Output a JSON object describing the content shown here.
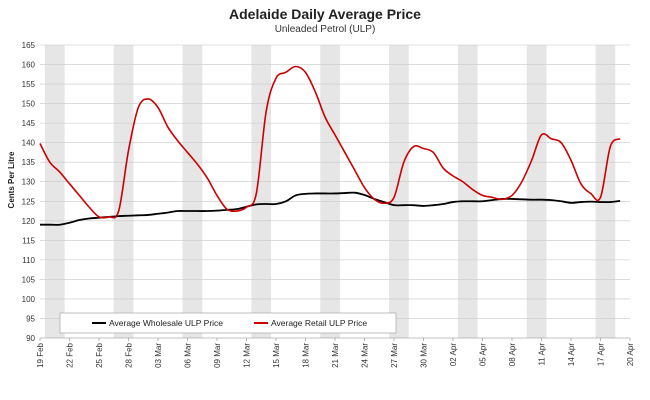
{
  "chart_data": {
    "type": "line",
    "title": "Adelaide Daily Average Price",
    "subtitle": "Unleaded Petrol (ULP)",
    "ylabel": "Cents Per Litre",
    "ylim": [
      90,
      165
    ],
    "yticks": [
      90,
      95,
      100,
      105,
      110,
      115,
      120,
      125,
      130,
      135,
      140,
      145,
      150,
      155,
      160,
      165
    ],
    "grid": true,
    "legend_position": "bottom-left",
    "x_start_date": "2023-02-19",
    "x_tick_labels": [
      "19 Feb",
      "22 Feb",
      "25 Feb",
      "28 Feb",
      "03 Mar",
      "06 Mar",
      "09 Mar",
      "12 Mar",
      "15 Mar",
      "18 Mar",
      "21 Mar",
      "24 Mar",
      "27 Mar",
      "30 Mar",
      "02 Apr",
      "05 Apr",
      "08 Apr",
      "11 Apr",
      "14 Apr",
      "17 Apr",
      "20 Apr"
    ],
    "shaded_days": [
      1,
      8,
      15,
      22,
      29,
      36,
      43,
      50,
      57
    ],
    "series": [
      {
        "name": "Average Wholesale ULP Price",
        "color": "#000000",
        "x": [
          "19 Feb",
          "20 Feb",
          "21 Feb",
          "22 Feb",
          "23 Feb",
          "24 Feb",
          "25 Feb",
          "26 Feb",
          "27 Feb",
          "28 Feb",
          "01 Mar",
          "02 Mar",
          "03 Mar",
          "04 Mar",
          "05 Mar",
          "06 Mar",
          "07 Mar",
          "08 Mar",
          "09 Mar",
          "10 Mar",
          "11 Mar",
          "12 Mar",
          "13 Mar",
          "14 Mar",
          "15 Mar",
          "16 Mar",
          "17 Mar",
          "18 Mar",
          "19 Mar",
          "20 Mar",
          "21 Mar",
          "22 Mar",
          "23 Mar",
          "24 Mar",
          "25 Mar",
          "26 Mar",
          "27 Mar",
          "28 Mar",
          "29 Mar",
          "30 Mar",
          "31 Mar",
          "01 Apr",
          "02 Apr",
          "03 Apr",
          "04 Apr",
          "05 Apr",
          "06 Apr",
          "07 Apr",
          "08 Apr",
          "09 Apr",
          "10 Apr",
          "11 Apr",
          "12 Apr",
          "13 Apr",
          "14 Apr",
          "15 Apr",
          "16 Apr",
          "17 Apr",
          "18 Apr",
          "19 Apr"
        ],
        "values": [
          119.0,
          119.0,
          119.0,
          119.5,
          120.2,
          120.6,
          120.8,
          121.0,
          121.2,
          121.3,
          121.4,
          121.5,
          121.8,
          122.1,
          122.5,
          122.5,
          122.5,
          122.5,
          122.6,
          122.8,
          123.0,
          123.6,
          124.2,
          124.3,
          124.3,
          125.0,
          126.5,
          126.9,
          127.0,
          127.0,
          127.0,
          127.1,
          127.2,
          126.6,
          125.6,
          124.8,
          124.0,
          124.0,
          124.0,
          123.8,
          124.0,
          124.3,
          124.8,
          125.0,
          125.0,
          125.0,
          125.3,
          125.6,
          125.6,
          125.5,
          125.4,
          125.4,
          125.3,
          125.0,
          124.6,
          124.8,
          124.9,
          124.8,
          124.8,
          125.1
        ]
      },
      {
        "name": "Average Retail ULP Price",
        "color": "#cc0000",
        "x": [
          "19 Feb",
          "20 Feb",
          "21 Feb",
          "22 Feb",
          "23 Feb",
          "24 Feb",
          "25 Feb",
          "26 Feb",
          "27 Feb",
          "28 Feb",
          "01 Mar",
          "02 Mar",
          "03 Mar",
          "04 Mar",
          "05 Mar",
          "06 Mar",
          "07 Mar",
          "08 Mar",
          "09 Mar",
          "10 Mar",
          "11 Mar",
          "12 Mar",
          "13 Mar",
          "14 Mar",
          "15 Mar",
          "16 Mar",
          "17 Mar",
          "18 Mar",
          "19 Mar",
          "20 Mar",
          "21 Mar",
          "22 Mar",
          "23 Mar",
          "24 Mar",
          "25 Mar",
          "26 Mar",
          "27 Mar",
          "28 Mar",
          "29 Mar",
          "30 Mar",
          "31 Mar",
          "01 Apr",
          "02 Apr",
          "03 Apr",
          "04 Apr",
          "05 Apr",
          "06 Apr",
          "07 Apr",
          "08 Apr",
          "09 Apr",
          "10 Apr",
          "11 Apr",
          "12 Apr",
          "13 Apr",
          "14 Apr",
          "15 Apr",
          "16 Apr",
          "17 Apr",
          "18 Apr",
          "19 Apr"
        ],
        "values": [
          139.8,
          135.0,
          132.5,
          129.5,
          126.5,
          123.5,
          121.0,
          121.0,
          122.5,
          138.0,
          149.0,
          151.2,
          149.0,
          144.0,
          140.5,
          137.5,
          134.5,
          131.0,
          126.5,
          123.0,
          122.5,
          123.5,
          127.0,
          148.0,
          156.5,
          158.0,
          159.5,
          158.0,
          153.0,
          146.5,
          142.0,
          137.5,
          133.0,
          128.5,
          125.5,
          124.5,
          126.0,
          135.0,
          139.0,
          138.5,
          137.5,
          133.5,
          131.5,
          130.0,
          128.0,
          126.5,
          126.0,
          125.5,
          126.5,
          130.0,
          135.5,
          142.0,
          141.0,
          140.0,
          135.5,
          129.5,
          127.0,
          126.0,
          139.0,
          141.0
        ]
      }
    ]
  }
}
